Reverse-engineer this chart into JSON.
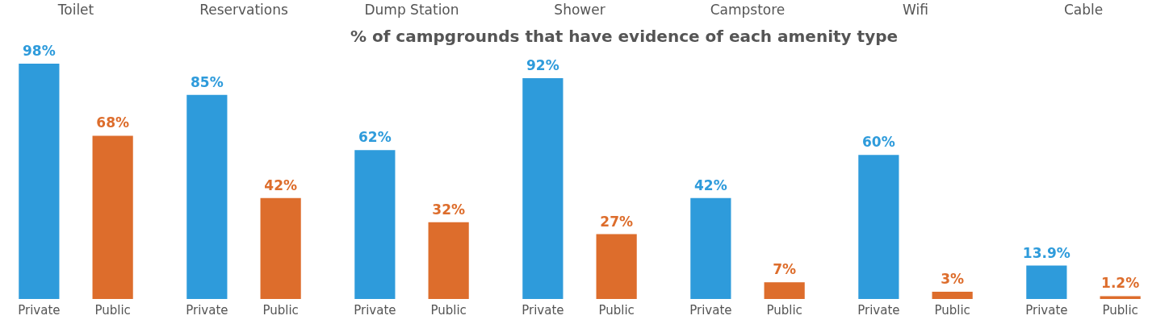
{
  "chart_data": [
    {
      "type": "bar",
      "title": "Toilet",
      "categories": [
        "Private",
        "Public"
      ],
      "values": [
        98,
        68
      ],
      "colors": [
        "#2e9bdb",
        "#dd6d2c"
      ],
      "value_labels": [
        "98%",
        "68%"
      ],
      "annotations": [
        "% of campgrounds that have evidence of each amenity type"
      ]
    },
    {
      "type": "bar",
      "title": "Reservations",
      "categories": [
        "Private",
        "Public"
      ],
      "values": [
        85,
        42
      ],
      "colors": [
        "#2e9bdb",
        "#dd6d2c"
      ],
      "value_labels": [
        "85%",
        "42%"
      ]
    },
    {
      "type": "bar",
      "title": "Dump Station",
      "categories": [
        "Private",
        "Public"
      ],
      "values": [
        62,
        32
      ],
      "colors": [
        "#2e9bdb",
        "#dd6d2c"
      ],
      "value_labels": [
        "62%",
        "32%"
      ]
    },
    {
      "type": "bar",
      "title": "Shower",
      "categories": [
        "Private",
        "Public"
      ],
      "values": [
        92,
        27
      ],
      "colors": [
        "#2e9bdb",
        "#dd6d2c"
      ],
      "value_labels": [
        "92%",
        "27%"
      ]
    },
    {
      "type": "bar",
      "title": "Campstore",
      "categories": [
        "Private",
        "Public"
      ],
      "values": [
        42,
        7
      ],
      "colors": [
        "#2e9bdb",
        "#dd6d2c"
      ],
      "value_labels": [
        "42%",
        "7%"
      ]
    },
    {
      "type": "bar",
      "title": "Wifi",
      "categories": [
        "Private",
        "Public"
      ],
      "values": [
        60,
        3
      ],
      "colors": [
        "#2e9bdb",
        "#dd6d2c"
      ],
      "value_labels": [
        "60%",
        "3%"
      ]
    },
    {
      "type": "bar",
      "title": "Cable",
      "categories": [
        "Private",
        "Public"
      ],
      "values": [
        13.9,
        1.2
      ],
      "colors": [
        "#2e9bdb",
        "#dd6d2c"
      ],
      "value_labels": [
        "13.9%",
        "1.2%"
      ]
    }
  ]
}
